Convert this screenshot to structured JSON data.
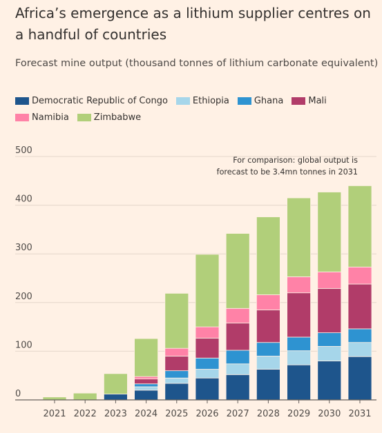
{
  "header": {
    "title": "Africa’s emergence as a lithium supplier centres on a handful of countries",
    "subtitle": "Forecast mine output (thousand tonnes of lithium carbonate equivalent)"
  },
  "annotation": "For comparison: global output is forecast to be 3.4mn tonnes in 2031",
  "chart_data": {
    "type": "bar",
    "stacked": true,
    "categories": [
      "2021",
      "2022",
      "2023",
      "2024",
      "2025",
      "2026",
      "2027",
      "2028",
      "2029",
      "2030",
      "2031"
    ],
    "ylim": [
      0,
      500
    ],
    "yticks": [
      0,
      100,
      200,
      300,
      400,
      500
    ],
    "grid": true,
    "legend_position": "top-left",
    "series": [
      {
        "name": "Democratic Republic of Congo",
        "color": "#1e558c",
        "values": [
          0,
          0,
          12,
          20,
          34,
          45,
          52,
          63,
          72,
          80,
          89
        ]
      },
      {
        "name": "Ethiopia",
        "color": "#a6d6ea",
        "values": [
          0,
          0,
          0,
          7,
          11,
          18,
          22,
          27,
          29,
          30,
          29
        ]
      },
      {
        "name": "Ghana",
        "color": "#2e93d1",
        "values": [
          0,
          0,
          0,
          6,
          15,
          23,
          28,
          28,
          28,
          28,
          28
        ]
      },
      {
        "name": "Mali",
        "color": "#b13c69",
        "values": [
          0,
          0,
          0,
          10,
          30,
          41,
          56,
          67,
          91,
          91,
          92
        ]
      },
      {
        "name": "Namibia",
        "color": "#ff82a7",
        "values": [
          0,
          0,
          0,
          5,
          16,
          23,
          30,
          31,
          33,
          34,
          35
        ]
      },
      {
        "name": "Zimbabwe",
        "color": "#b1cf7a",
        "values": [
          6,
          14,
          42,
          78,
          113,
          149,
          154,
          160,
          162,
          164,
          167
        ]
      }
    ]
  }
}
